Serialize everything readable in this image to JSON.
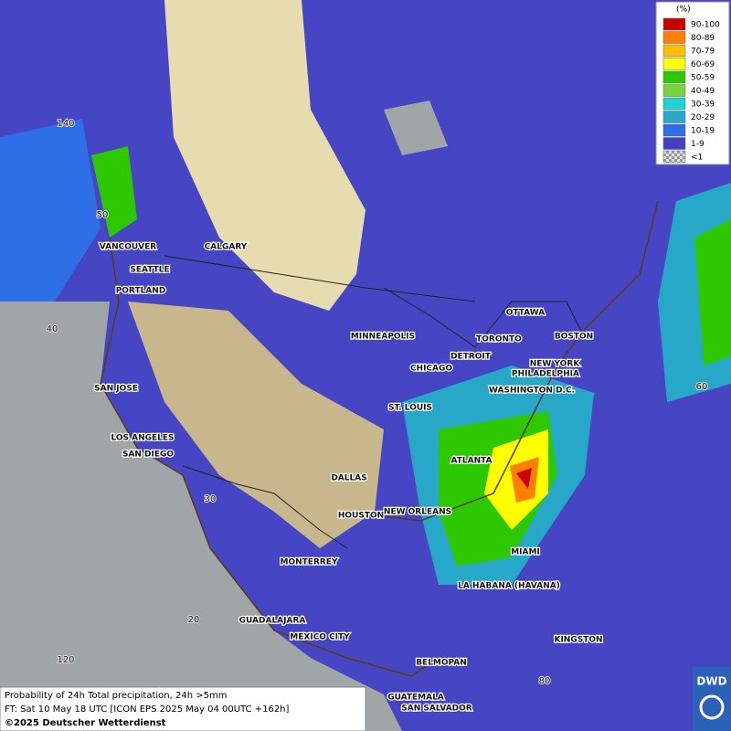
{
  "legend": {
    "title": "(%)",
    "items": [
      {
        "label": "90-100",
        "color": "#c80000"
      },
      {
        "label": "80-89",
        "color": "#ff7f00"
      },
      {
        "label": "70-79",
        "color": "#ffbf00"
      },
      {
        "label": "60-69",
        "color": "#ffff00"
      },
      {
        "label": "50-59",
        "color": "#2ec800"
      },
      {
        "label": "40-49",
        "color": "#7ad23c"
      },
      {
        "label": "30-39",
        "color": "#20d2d2"
      },
      {
        "label": "20-29",
        "color": "#28a8c8"
      },
      {
        "label": "10-19",
        "color": "#2e6ee6"
      },
      {
        "label": "1-9",
        "color": "#4040c0"
      },
      {
        "label": "<1",
        "color": "#b4b4b4"
      }
    ]
  },
  "cities": [
    "VANCOUVER",
    "CALGARY",
    "SEATTLE",
    "PORTLAND",
    "MINNEAPOLIS",
    "OTTAWA",
    "TORONTO",
    "BOSTON",
    "DETROIT",
    "NEW YORK",
    "CHICAGO",
    "PHILADELPHIA",
    "SAN JOSE",
    "WASHINGTON D.C.",
    "ST. LOUIS",
    "LOS ANGELES",
    "SAN DIEGO",
    "ATLANTA",
    "DALLAS",
    "HOUSTON",
    "NEW ORLEANS",
    "MIAMI",
    "MONTERREY",
    "LA HABANA (HAVANA)",
    "GUADALAJARA",
    "MEXICO CITY",
    "KINGSTON",
    "BELMOPAN",
    "GUATEMALA",
    "SAN SALVADOR"
  ],
  "graticule_labels": [
    "140",
    "50",
    "40",
    "30",
    "20",
    "120",
    "60",
    "80"
  ],
  "footer": {
    "lines": [
      "Probability of 24h Total precipitation, 24h >5mm",
      "FT: Sat 10 May 18 UTC [ICON EPS 2025 May 04 00UTC +162h]",
      "©2025 Deutscher Wetterdienst"
    ]
  },
  "logo": "DWD"
}
